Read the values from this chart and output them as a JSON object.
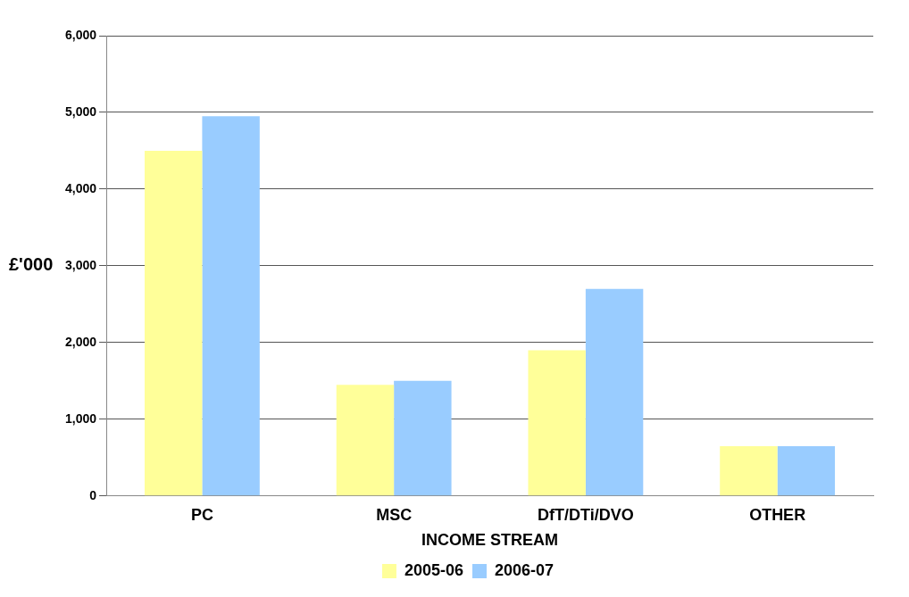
{
  "chart_data": {
    "type": "bar",
    "xlabel": "INCOME STREAM",
    "ylabel": "£'000",
    "categories": [
      "PC",
      "MSC",
      "DfT/DTi/DVO",
      "OTHER"
    ],
    "series": [
      {
        "name": "2005-06",
        "color": "#ffff99",
        "values": [
          4500,
          1450,
          1900,
          650
        ]
      },
      {
        "name": "2006-07",
        "color": "#99ccff",
        "values": [
          4950,
          1500,
          2700,
          650
        ]
      }
    ],
    "ylim": [
      0,
      6000
    ],
    "yticks": [
      {
        "value": 0,
        "label": "0"
      },
      {
        "value": 1000,
        "label": "1,000"
      },
      {
        "value": 2000,
        "label": "2,000"
      },
      {
        "value": 3000,
        "label": "3,000"
      },
      {
        "value": 4000,
        "label": "4,000"
      },
      {
        "value": 5000,
        "label": "5,000"
      },
      {
        "value": 6000,
        "label": "6,000"
      }
    ],
    "grid": "y",
    "legend": "bottom"
  }
}
